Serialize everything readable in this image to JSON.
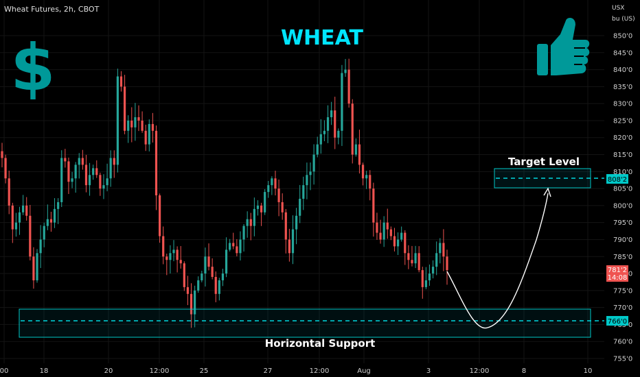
{
  "header": {
    "symbol": "Wheat Futures, 2h, CBOT",
    "title": "WHEAT",
    "unit_line1": "USX",
    "unit_line2": "bu (US)"
  },
  "colors": {
    "background": "#000000",
    "up": "#26a69a",
    "down": "#ef5350",
    "accent": "#00c8c8",
    "title": "#00e5ff",
    "icon": "#009999",
    "grid": "#141414",
    "axis_text": "#d0d0d0"
  },
  "icons": {
    "dollar": "dollar-icon",
    "thumbs_up": "thumbs-up-icon"
  },
  "annotations": {
    "target_label": "Target Level",
    "support_label": "Horizontal Support",
    "target_price_label": "808'2",
    "support_price_label": "766'0",
    "current_price_label": "781'2",
    "countdown_label": "14:08"
  },
  "chart_data": {
    "type": "candlestick",
    "title": "WHEAT",
    "y_unit": "USX / bu (US)",
    "ylim": [
      753,
      856
    ],
    "y_ticks": [
      "850'0",
      "845'0",
      "840'0",
      "835'0",
      "830'0",
      "825'0",
      "820'0",
      "815'0",
      "810'0",
      "805'0",
      "800'0",
      "795'0",
      "790'0",
      "785'0",
      "780'0",
      "775'0",
      "770'0",
      "765'0",
      "760'0",
      "755'0"
    ],
    "x_ticks": [
      "00",
      "18",
      "20",
      "12:00",
      "25",
      "27",
      "12:00",
      "Aug",
      "3",
      "12:00",
      "8",
      "10"
    ],
    "target_level": 808.25,
    "support_level": 766,
    "current_price": 781.25,
    "closes": [
      814,
      808,
      800,
      793,
      795,
      798,
      800,
      797,
      785,
      778,
      786,
      790,
      794,
      796,
      795,
      799,
      801,
      814,
      813,
      807,
      808,
      812,
      814,
      812,
      806,
      809,
      811,
      809,
      805,
      806,
      808,
      814,
      812,
      838,
      835,
      822,
      825,
      823,
      826,
      825,
      822,
      818,
      824,
      822,
      803,
      791,
      785,
      784,
      786,
      787,
      784,
      783,
      776,
      774,
      768,
      775,
      778,
      780,
      785,
      782,
      779,
      774,
      778,
      780,
      787,
      789,
      788,
      786,
      790,
      794,
      796,
      794,
      799,
      800,
      798,
      804,
      806,
      808,
      805,
      801,
      798,
      790,
      786,
      793,
      797,
      802,
      806,
      809,
      810,
      815,
      818,
      821,
      822,
      826,
      828,
      820,
      822,
      839,
      840,
      830,
      815,
      818,
      812,
      808,
      809,
      805,
      795,
      792,
      790,
      795,
      793,
      791,
      788,
      790,
      792,
      786,
      784,
      783,
      786,
      781,
      776,
      778,
      780,
      782,
      786,
      789,
      785,
      781
    ],
    "dates_note": ""
  }
}
